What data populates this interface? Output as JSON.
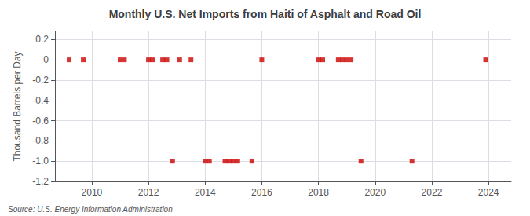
{
  "chart_data": {
    "type": "scatter",
    "title": "Monthly U.S. Net Imports from Haiti of Asphalt and Road Oil",
    "ylabel": "Thousand Barrels per Day",
    "annotations": [
      "Source: U.S. Energy Information Administration"
    ],
    "color": "#cc0000",
    "marker": "square",
    "grid": true,
    "xlim": [
      2008.7,
      2024.8
    ],
    "xticks": [
      2010,
      2012,
      2014,
      2016,
      2018,
      2020,
      2022,
      2024
    ],
    "ylim": [
      -1.2,
      0.28
    ],
    "yticks": [
      0.2,
      0,
      -0.2,
      -0.4,
      -0.6,
      -0.8,
      {
        "value": -1,
        "label": "-1.0"
      },
      -1.2
    ],
    "x": [
      2009.2,
      2009.7,
      2011.0,
      2011.15,
      2012.0,
      2012.15,
      2012.5,
      2012.65,
      2012.85,
      2013.1,
      2013.5,
      2014.0,
      2014.15,
      2014.7,
      2014.85,
      2015.0,
      2015.15,
      2015.65,
      2016.0,
      2018.0,
      2018.15,
      2018.7,
      2018.85,
      2019.0,
      2019.15,
      2019.5,
      2021.3,
      2023.9
    ],
    "values": [
      0.0,
      0.0,
      0.0,
      0.0,
      0.0,
      0.0,
      0.0,
      0.0,
      -1.0,
      0.0,
      0.0,
      -1.0,
      -1.0,
      -1.0,
      -1.0,
      -1.0,
      -1.0,
      -1.0,
      0.0,
      0.0,
      0.0,
      0.0,
      0.0,
      0.0,
      0.0,
      -1.0,
      -1.0,
      0.0
    ]
  }
}
